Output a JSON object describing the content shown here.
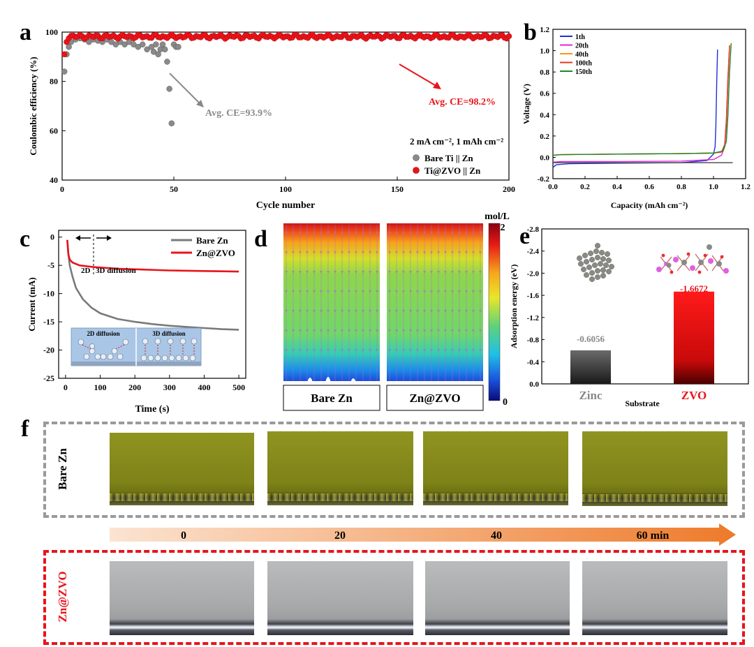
{
  "panels": {
    "a": {
      "label": "a",
      "xlabel": "Cycle number",
      "ylabel": "Coulombic efficiency (%)",
      "xticks": [
        "0",
        "50",
        "100",
        "150",
        "200"
      ],
      "yticks": [
        "40",
        "60",
        "80",
        "100"
      ],
      "condition": "2 mA cm⁻², 1 mAh cm⁻²",
      "legend": [
        "Bare Ti || Zn",
        "Ti@ZVO || Zn"
      ],
      "annotation_grey": "Avg. CE=93.9%",
      "annotation_red": "Avg. CE=98.2%"
    },
    "b": {
      "label": "b",
      "xlabel": "Capacity (mAh cm⁻²)",
      "ylabel": "Voltage (V)",
      "xticks": [
        "0.0",
        "0.2",
        "0.4",
        "0.6",
        "0.8",
        "1.0",
        "1.2"
      ],
      "yticks": [
        "-0.2",
        "0.0",
        "0.2",
        "0.4",
        "0.6",
        "0.8",
        "1.0",
        "1.2"
      ],
      "legend": [
        "1th",
        "20th",
        "40th",
        "100th",
        "150th"
      ]
    },
    "c": {
      "label": "c",
      "xlabel": "Time (s)",
      "ylabel": "Current (mA)",
      "xticks": [
        "0",
        "100",
        "200",
        "300",
        "400",
        "500"
      ],
      "yticks": [
        "0",
        "-5",
        "-10",
        "-15",
        "-20",
        "-25"
      ],
      "legend": [
        "Bare Zn",
        "Zn@ZVO"
      ],
      "note_2d": "2D",
      "note_3d": "3D diffusion",
      "inset_2d": "2D diffusion",
      "inset_3d": "3D diffusion"
    },
    "d": {
      "label": "d",
      "unit": "mol/L",
      "cbar_max": "2",
      "cbar_min": "0",
      "left_label": "Bare Zn",
      "right_label": "Zn@ZVO"
    },
    "e": {
      "label": "e",
      "xlabel": "Substrate",
      "ylabel": "Adsorption energy (eV)",
      "yticks": [
        "0.0",
        "-0.4",
        "-0.8",
        "-1.2",
        "-1.6",
        "-2.0",
        "-2.4",
        "-2.8"
      ],
      "bar_labels": [
        "-0.6056",
        "-1.6672"
      ],
      "categories": [
        "Zinc",
        "ZVO"
      ]
    },
    "f": {
      "label": "f",
      "top_row_label": "Bare Zn",
      "bottom_row_label": "Zn@ZVO",
      "time_labels": [
        "0",
        "20",
        "40",
        "60 min"
      ]
    }
  },
  "chart_data": [
    {
      "type": "scatter",
      "panel": "a",
      "xlim": [
        0,
        200
      ],
      "ylim": [
        40,
        100
      ],
      "series": [
        {
          "name": "Bare Ti || Zn",
          "color": "#8a8a8a",
          "x": [
            1,
            2,
            3,
            4,
            6,
            8,
            10,
            12,
            14,
            16,
            18,
            20,
            22,
            24,
            26,
            28,
            30,
            32,
            34,
            36,
            38,
            40,
            41,
            42,
            43,
            44,
            45,
            46,
            47,
            48,
            49,
            50,
            51,
            52
          ],
          "y": [
            84,
            91,
            94,
            96,
            97,
            97.5,
            97,
            96,
            97,
            96.5,
            96,
            97,
            96,
            95,
            96,
            95,
            96,
            95,
            94,
            95,
            93,
            94,
            92,
            95,
            91,
            93,
            95,
            93,
            88,
            77,
            63,
            95,
            94,
            94
          ]
        },
        {
          "name": "Ti@ZVO || Zn",
          "color": "#e8141b",
          "x_start": 1,
          "x_end": 200,
          "step": 1,
          "y_mean": 98.2,
          "y_first": [
            91,
            96,
            97.5,
            98.5
          ]
        }
      ]
    },
    {
      "type": "line",
      "panel": "b",
      "xlim": [
        0,
        1.2
      ],
      "ylim": [
        -0.2,
        1.2
      ],
      "series": [
        {
          "name": "1th",
          "color": "#1f2fd6",
          "x": [
            0,
            0.02,
            0.1,
            0.4,
            0.8,
            0.96,
            1.0,
            1.01,
            1.015,
            1.02,
            1.025
          ],
          "y": [
            -0.095,
            -0.07,
            -0.06,
            -0.055,
            -0.05,
            -0.03,
            0.03,
            0.1,
            0.3,
            0.7,
            1.01
          ]
        },
        {
          "name": "20th",
          "color": "#e02ad6",
          "x": [
            0,
            0.05,
            0.4,
            0.8,
            1.0,
            1.05,
            1.07,
            1.08,
            1.09,
            1.1
          ],
          "y": [
            -0.045,
            -0.04,
            -0.04,
            -0.035,
            -0.02,
            0.02,
            0.1,
            0.3,
            0.7,
            1.04
          ]
        },
        {
          "name": "40th",
          "color": "#f09a1a",
          "x": [
            0,
            0.05,
            0.4,
            0.8,
            1.0,
            1.05,
            1.07,
            1.08,
            1.09,
            1.1
          ],
          "y": [
            0.02,
            0.025,
            0.03,
            0.035,
            0.04,
            0.05,
            0.12,
            0.35,
            0.75,
            1.05
          ]
        },
        {
          "name": "100th",
          "color": "#e8381b",
          "x": [
            0,
            0.05,
            0.4,
            0.8,
            1.0,
            1.05,
            1.07,
            1.08,
            1.09,
            1.1
          ],
          "y": [
            0.02,
            0.025,
            0.03,
            0.035,
            0.04,
            0.05,
            0.12,
            0.35,
            0.75,
            1.05
          ]
        },
        {
          "name": "150th",
          "color": "#1c8a2a",
          "x": [
            0,
            0.05,
            0.4,
            0.8,
            1.0,
            1.06,
            1.08,
            1.09,
            1.1,
            1.11
          ],
          "y": [
            0.02,
            0.025,
            0.03,
            0.035,
            0.04,
            0.06,
            0.15,
            0.4,
            0.8,
            1.07
          ]
        },
        {
          "name": "",
          "color": "#444444",
          "x": [
            0,
            0.3,
            0.7,
            1.0,
            1.12
          ],
          "y": [
            -0.05,
            -0.05,
            -0.05,
            -0.05,
            -0.05
          ]
        }
      ]
    },
    {
      "type": "line",
      "panel": "c",
      "xlim": [
        0,
        500
      ],
      "ylim": [
        -25,
        0
      ],
      "series": [
        {
          "name": "Bare Zn",
          "color": "#7a7a7a",
          "x": [
            5,
            8,
            12,
            20,
            30,
            50,
            75,
            100,
            150,
            200,
            250,
            300,
            350,
            400,
            450,
            500
          ],
          "y": [
            -0.5,
            -3,
            -5,
            -7,
            -9,
            -11,
            -12.5,
            -13.5,
            -14.5,
            -15,
            -15.4,
            -15.7,
            -15.9,
            -16.1,
            -16.3,
            -16.4
          ]
        },
        {
          "name": "Zn@ZVO",
          "color": "#e8141b",
          "x": [
            5,
            8,
            12,
            20,
            40,
            80,
            150,
            200,
            300,
            400,
            500
          ],
          "y": [
            -0.5,
            -3,
            -4,
            -4.5,
            -5,
            -5.3,
            -5.6,
            -5.7,
            -5.9,
            -6,
            -6.1
          ]
        }
      ]
    },
    {
      "type": "bar",
      "panel": "e",
      "categories": [
        "Zinc",
        "ZVO"
      ],
      "values": [
        -0.6056,
        -1.6672
      ],
      "colors": [
        "#555555",
        "#e01010"
      ],
      "ylim": [
        0,
        -2.8
      ]
    }
  ]
}
